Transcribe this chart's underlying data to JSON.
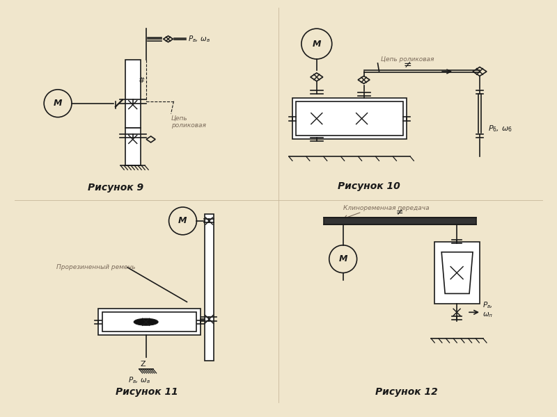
{
  "bg_color": "#f0e6cc",
  "line_color": "#1a1a1a",
  "text_color": "#1a1a1a",
  "label_color": "#7a6a5a",
  "title_color": "#111111",
  "fig9_caption": "Рисунок 9",
  "fig10_caption": "Рисунок 10",
  "fig11_caption": "Рисунок 11",
  "fig12_caption": "Рисунок 12",
  "fig9_label1": "Цепь\nроликовая",
  "fig10_label1": "Цепь роликовая",
  "fig11_label1": "Прорезиненный ремень",
  "fig12_label1": "Клиноременная передача",
  "fig9_pr": "$P_{в}$, $\\omega_{в}$",
  "fig10_pr": "$P_{6}$, $\\omega_{6}$",
  "fig11_pr": "$P_{в}$, $\\omega_{в}$",
  "fig12_pr": "$P_{в}$,\n$\\omega_{п}$"
}
